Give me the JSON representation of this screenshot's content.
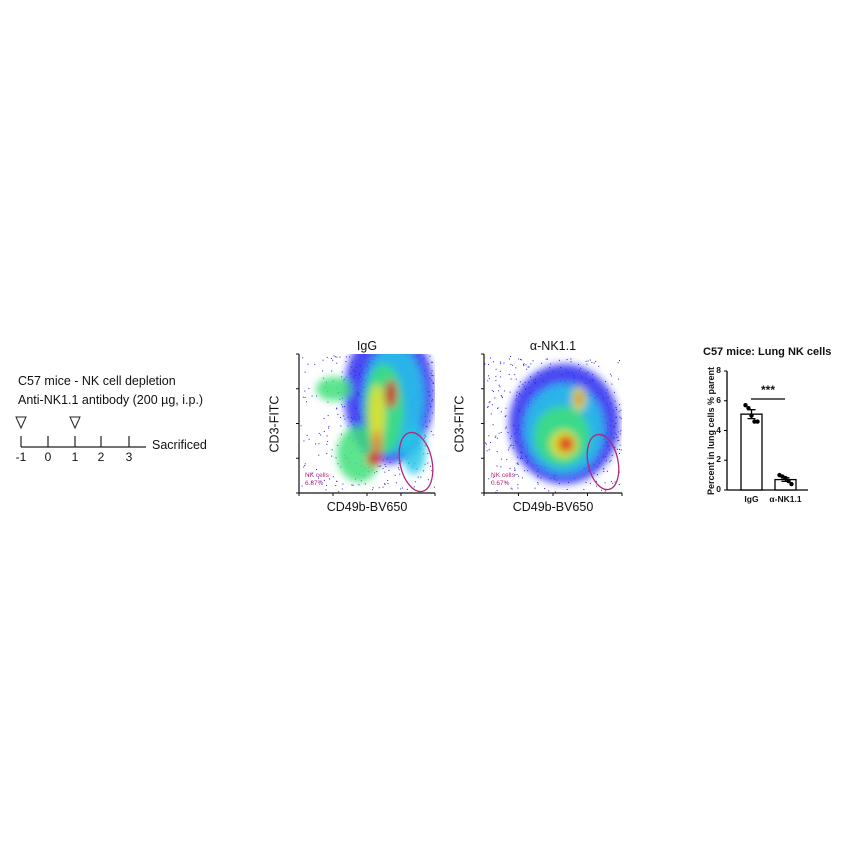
{
  "timeline": {
    "line1": "C57 mice - NK cell depletion",
    "line2": "Anti-NK1.1 antibody (200 µg, i.p.)",
    "days": [
      "-1",
      "0",
      "1",
      "2",
      "3"
    ],
    "injection_days": [
      "-1",
      "1"
    ],
    "end_label": "Sacrificed"
  },
  "flow_plots": [
    {
      "title": "IgG",
      "xlabel": "CD49b-BV650",
      "ylabel": "CD3-FITC",
      "gate_label": "NK cells",
      "gate_value": "6.87%"
    },
    {
      "title": "α-NK1.1",
      "xlabel": "CD49b-BV650",
      "ylabel": "CD3-FITC",
      "gate_label": "NK cells",
      "gate_value": "0.67%"
    }
  ],
  "colors": {
    "gate": "#b0287a",
    "dots": "#2020e0",
    "bar_edge": "#000000"
  },
  "chart_data": {
    "type": "bar",
    "title": "C57 mice: Lung NK cells",
    "ylabel": "Percent in lung cells  % parent",
    "categories": [
      "IgG",
      "α-NK1.1"
    ],
    "values": [
      5.1,
      0.7
    ],
    "errors": [
      0.3,
      0.12
    ],
    "points": [
      [
        5.7,
        5.5,
        5.0,
        4.6,
        4.6
      ],
      [
        1.0,
        0.9,
        0.8,
        0.6,
        0.4
      ]
    ],
    "yticks": [
      "0",
      "2",
      "4",
      "6",
      "8"
    ],
    "ylim": [
      0,
      8
    ],
    "significance": "***",
    "grid": false
  }
}
